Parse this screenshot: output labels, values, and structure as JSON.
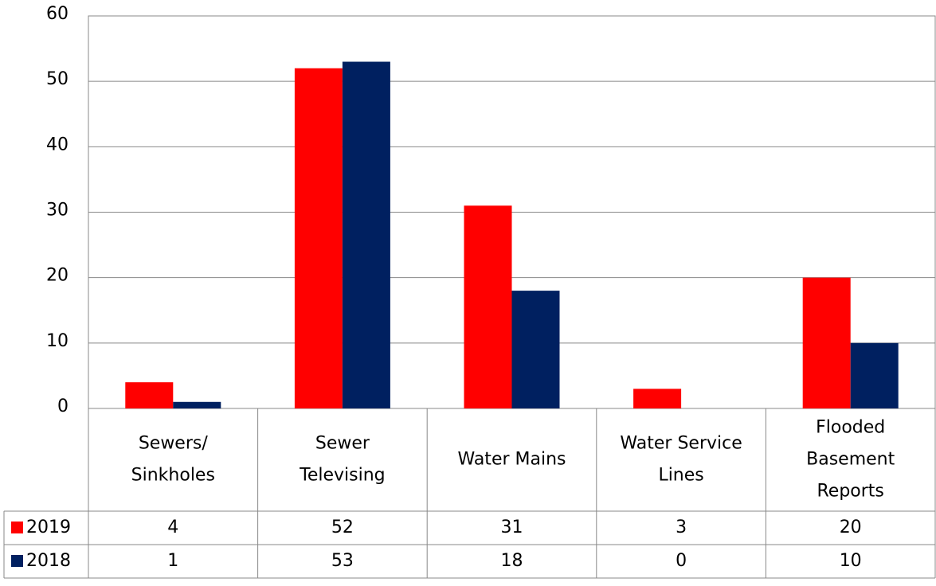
{
  "chart_data": {
    "type": "bar",
    "categories": [
      "Sewers/\nSinkholes",
      "Sewer\nTelevising",
      "Water Mains",
      "Water Service\nLines",
      "Flooded\nBasement\nReports"
    ],
    "series": [
      {
        "name": "2019",
        "color": "#ff0000",
        "values": [
          4,
          52,
          31,
          3,
          20
        ]
      },
      {
        "name": "2018",
        "color": "#002060",
        "values": [
          1,
          53,
          18,
          0,
          10
        ]
      }
    ],
    "ylim": [
      0,
      60
    ],
    "yticks": [
      0,
      10,
      20,
      30,
      40,
      50,
      60
    ],
    "grid": true,
    "data_table": true
  }
}
